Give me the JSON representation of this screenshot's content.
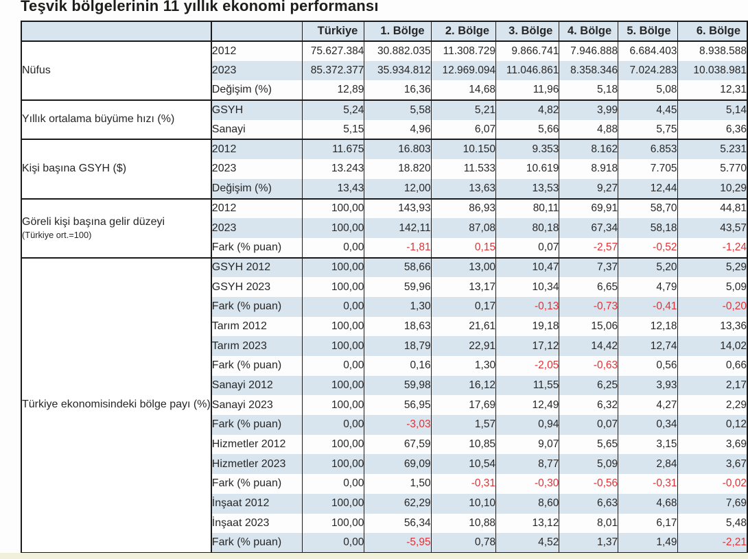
{
  "colors": {
    "stripe_blue": "#d9e5ee",
    "negative_red": "#e03236",
    "text_color": "#262626",
    "border_color": "#191919",
    "strip_yellow": "#f1f0da"
  },
  "chart_data": {
    "type": "table",
    "title": "Teşvik bölgelerinin 11 yıllık ekonomi performansı",
    "columns": [
      "",
      "",
      "Türkiye",
      "1. Bölge",
      "2. Bölge",
      "3. Bölge",
      "4. Bölge",
      "5. Bölge",
      "6. Bölge"
    ],
    "row_groups": [
      {
        "label": "Nüfus",
        "rows": [
          {
            "label": "2012",
            "values": [
              "75.627.384",
              "30.882.035",
              "11.308.729",
              "9.866.741",
              "7.946.888",
              "6.684.403",
              "8.938.588"
            ]
          },
          {
            "label": "2023",
            "values": [
              "85.372.377",
              "35.934.812",
              "12.969.094",
              "11.046.861",
              "8.358.346",
              "7.024.283",
              "10.038.981"
            ]
          },
          {
            "label": "Değişim (%)",
            "values": [
              "12,89",
              "16,36",
              "14,68",
              "11,96",
              "5,18",
              "5,08",
              "12,31"
            ]
          }
        ]
      },
      {
        "label": "Yıllık ortalama büyüme hızı (%)",
        "rows": [
          {
            "label": "GSYH",
            "values": [
              "5,24",
              "5,58",
              "5,21",
              "4,82",
              "3,99",
              "4,45",
              "5,14"
            ]
          },
          {
            "label": "Sanayi",
            "values": [
              "5,15",
              "4,96",
              "6,07",
              "5,66",
              "4,88",
              "5,75",
              "6,36"
            ]
          }
        ]
      },
      {
        "label": "Kişi başına GSYH ($)",
        "rows": [
          {
            "label": "2012",
            "values": [
              "11.675",
              "16.803",
              "10.150",
              "9.353",
              "8.162",
              "6.853",
              "5.231"
            ]
          },
          {
            "label": "2023",
            "values": [
              "13.243",
              "18.820",
              "11.533",
              "10.619",
              "8.918",
              "7.705",
              "5.770"
            ]
          },
          {
            "label": "Değişim (%)",
            "values": [
              "13,43",
              "12,00",
              "13,63",
              "13,53",
              "9,27",
              "12,44",
              "10,29"
            ]
          }
        ]
      },
      {
        "label": "Göreli kişi başına gelir düzeyi",
        "sublabel": "(Türkiye ort.=100)",
        "rows": [
          {
            "label": "2012",
            "values": [
              "100,00",
              "143,93",
              "86,93",
              "80,11",
              "69,91",
              "58,70",
              "44,81"
            ]
          },
          {
            "label": "2023",
            "values": [
              "100,00",
              "142,11",
              "87,08",
              "80,18",
              "67,34",
              "58,18",
              "43,57"
            ]
          },
          {
            "label": "Fark (% puan)",
            "values": [
              "0,00",
              "-1,81",
              "0,15",
              "0,07",
              "-2,57",
              "-0,52",
              "-1,24"
            ],
            "red_flags": [
              false,
              true,
              true,
              false,
              true,
              true,
              true
            ]
          }
        ]
      },
      {
        "label": "Türkiye ekonomisindeki bölge payı (%)",
        "rows": [
          {
            "label": "GSYH 2012",
            "values": [
              "100,00",
              "58,66",
              "13,00",
              "10,47",
              "7,37",
              "5,20",
              "5,29"
            ]
          },
          {
            "label": "GSYH 2023",
            "values": [
              "100,00",
              "59,96",
              "13,17",
              "10,34",
              "6,65",
              "4,79",
              "5,09"
            ]
          },
          {
            "label": "Fark (% puan)",
            "values": [
              "0,00",
              "1,30",
              "0,17",
              "-0,13",
              "-0,73",
              "-0,41",
              "-0,20"
            ],
            "red_flags": [
              false,
              false,
              false,
              true,
              true,
              true,
              true
            ]
          },
          {
            "label": "Tarım 2012",
            "values": [
              "100,00",
              "18,63",
              "21,61",
              "19,18",
              "15,06",
              "12,18",
              "13,36"
            ]
          },
          {
            "label": "Tarım 2023",
            "values": [
              "100,00",
              "18,79",
              "22,91",
              "17,12",
              "14,42",
              "12,74",
              "14,02"
            ]
          },
          {
            "label": "Fark (% puan)",
            "values": [
              "0,00",
              "0,16",
              "1,30",
              "-2,05",
              "-0,63",
              "0,56",
              "0,66"
            ],
            "red_flags": [
              false,
              false,
              false,
              true,
              true,
              false,
              false
            ]
          },
          {
            "label": "Sanayi 2012",
            "values": [
              "100,00",
              "59,98",
              "16,12",
              "11,55",
              "6,25",
              "3,93",
              "2,17"
            ]
          },
          {
            "label": "Sanayi 2023",
            "values": [
              "100,00",
              "56,95",
              "17,69",
              "12,49",
              "6,32",
              "4,27",
              "2,29"
            ]
          },
          {
            "label": "Fark (% puan)",
            "values": [
              "0,00",
              "-3,03",
              "1,57",
              "0,94",
              "0,07",
              "0,34",
              "0,12"
            ],
            "red_flags": [
              false,
              true,
              false,
              false,
              false,
              false,
              false
            ]
          },
          {
            "label": "Hizmetler 2012",
            "values": [
              "100,00",
              "67,59",
              "10,85",
              "9,07",
              "5,65",
              "3,15",
              "3,69"
            ]
          },
          {
            "label": "Hizmetler 2023",
            "values": [
              "100,00",
              "69,09",
              "10,54",
              "8,77",
              "5,09",
              "2,84",
              "3,67"
            ]
          },
          {
            "label": "Fark (% puan)",
            "values": [
              "0,00",
              "1,50",
              "-0,31",
              "-0,30",
              "-0,56",
              "-0,31",
              "-0,02"
            ],
            "red_flags": [
              false,
              false,
              true,
              true,
              true,
              true,
              true
            ]
          },
          {
            "label": "İnşaat 2012",
            "values": [
              "100,00",
              "62,29",
              "10,10",
              "8,60",
              "6,63",
              "4,68",
              "7,69"
            ]
          },
          {
            "label": "İnşaat 2023",
            "values": [
              "100,00",
              "56,34",
              "10,88",
              "13,12",
              "8,01",
              "6,17",
              "5,48"
            ]
          },
          {
            "label": "Fark (% puan)",
            "values": [
              "0,00",
              "-5,95",
              "0,78",
              "4,52",
              "1,37",
              "1,49",
              "-2,21"
            ],
            "red_flags": [
              false,
              true,
              false,
              false,
              false,
              false,
              true
            ]
          }
        ]
      }
    ]
  }
}
